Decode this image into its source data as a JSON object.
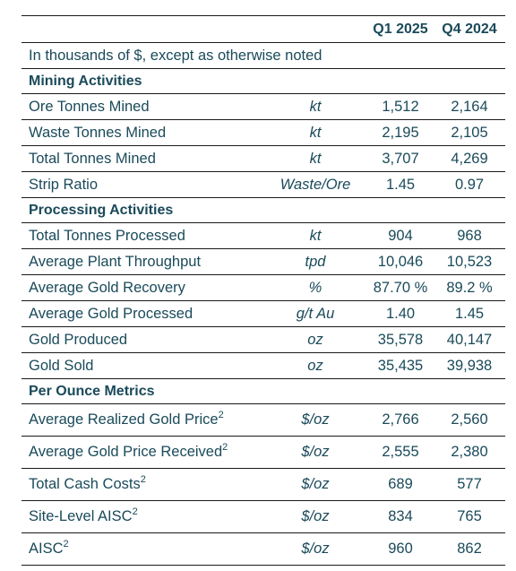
{
  "header": {
    "col_q1": "Q1 2025",
    "col_q4": "Q4 2024"
  },
  "note": "In thousands of $, except as otherwise noted",
  "sections": [
    {
      "title": "Mining Activities",
      "rows": [
        {
          "label": "Ore Tonnes Mined",
          "unit": "kt",
          "q1": "1,512",
          "q4": "2,164"
        },
        {
          "label": "Waste Tonnes Mined",
          "unit": "kt",
          "q1": "2,195",
          "q4": "2,105"
        },
        {
          "label": "Total Tonnes Mined",
          "unit": "kt",
          "q1": "3,707",
          "q4": "4,269"
        },
        {
          "label": "Strip Ratio",
          "unit": "Waste/Ore",
          "q1": "1.45",
          "q4": "0.97"
        }
      ]
    },
    {
      "title": "Processing Activities",
      "rows": [
        {
          "label": "Total Tonnes Processed",
          "unit": "kt",
          "q1": "904",
          "q4": "968"
        },
        {
          "label": "Average Plant Throughput",
          "unit": "tpd",
          "q1": "10,046",
          "q4": "10,523"
        },
        {
          "label": "Average Gold Recovery",
          "unit": "%",
          "q1": "87.70 %",
          "q4": "89.2 %"
        },
        {
          "label": "Average Gold Processed",
          "unit": "g/t Au",
          "q1": "1.40",
          "q4": "1.45"
        },
        {
          "label": "Gold Produced",
          "unit": "oz",
          "q1": "35,578",
          "q4": "40,147"
        },
        {
          "label": "Gold Sold",
          "unit": "oz",
          "q1": "35,435",
          "q4": "39,938"
        }
      ]
    },
    {
      "title": "Per Ounce Metrics",
      "rows": [
        {
          "label": "Average Realized Gold Price",
          "sup": "2",
          "unit": "$/oz",
          "q1": "2,766",
          "q4": "2,560"
        },
        {
          "label": "Average Gold Price Received",
          "sup": "2",
          "unit": "$/oz",
          "q1": "2,555",
          "q4": "2,380"
        },
        {
          "label": "Total Cash Costs",
          "sup": "2",
          "unit": "$/oz",
          "q1": "689",
          "q4": "577"
        },
        {
          "label": "Site-Level AISC",
          "sup": "2",
          "unit": "$/oz",
          "q1": "834",
          "q4": "765"
        },
        {
          "label": "AISC",
          "sup": "2",
          "unit": "$/oz",
          "q1": "960",
          "q4": "862"
        }
      ]
    }
  ]
}
